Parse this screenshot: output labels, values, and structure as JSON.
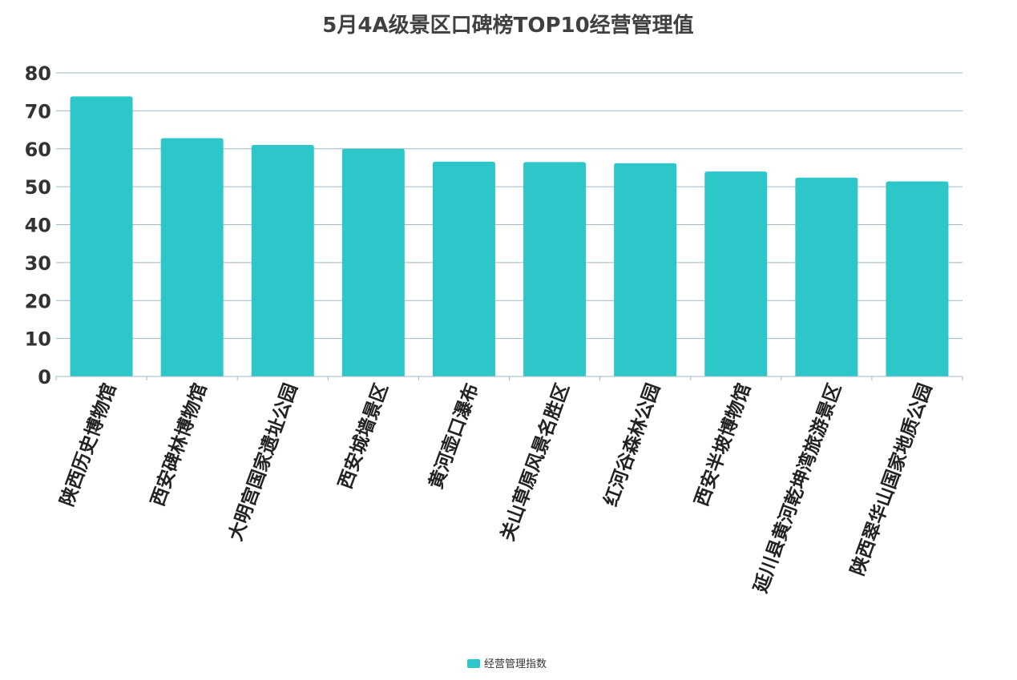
{
  "chart_data": {
    "type": "bar",
    "title": "5月4A级景区口碑榜TOP10经营管理值",
    "xlabel": "",
    "ylabel": "",
    "categories": [
      "陕西历史博物馆",
      "西安碑林博物馆",
      "大明宫国家遗址公园",
      "西安城墙景区",
      "黄河壶口瀑布",
      "关山草原风景名胜区",
      "红河谷森林公园",
      "西安半坡博物馆",
      "延川县黄河乾坤湾旅游景区",
      "陕西翠华山国家地质公园"
    ],
    "series": [
      {
        "name": "经营管理指数",
        "color": "#2ec7c9",
        "values": [
          73.8,
          62.8,
          61.0,
          60.0,
          56.6,
          56.5,
          56.2,
          54.0,
          52.4,
          51.4
        ]
      }
    ],
    "ylim": [
      0,
      80
    ],
    "yticks": [
      0,
      10,
      20,
      30,
      40,
      50,
      60,
      70,
      80
    ],
    "grid": true,
    "legend_position": "bottom-center"
  }
}
